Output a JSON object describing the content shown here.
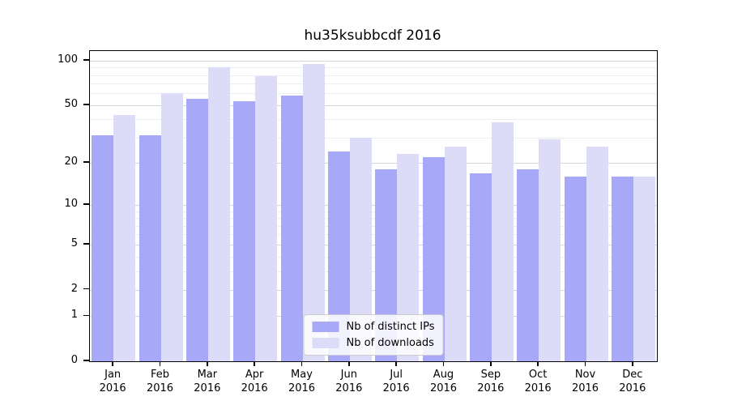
{
  "title": "hu35ksubbcdf 2016",
  "y_axis": {
    "ticks": [
      0,
      1,
      2,
      5,
      10,
      20,
      50,
      100
    ]
  },
  "grid": {
    "major": [
      1,
      2,
      5,
      10,
      20,
      50,
      100
    ],
    "minor": [
      3,
      4,
      6,
      7,
      8,
      9,
      30,
      40,
      60,
      70,
      80,
      90
    ]
  },
  "legend": {
    "items": [
      "Nb of distinct IPs",
      "Nb of downloads"
    ]
  },
  "chart_data": {
    "type": "bar",
    "title": "hu35ksubbcdf 2016",
    "categories": [
      "Jan 2016",
      "Feb 2016",
      "Mar 2016",
      "Apr 2016",
      "May 2016",
      "Jun 2016",
      "Jul 2016",
      "Aug 2016",
      "Sep 2016",
      "Oct 2016",
      "Nov 2016",
      "Dec 2016"
    ],
    "series": [
      {
        "name": "Nb of distinct IPs",
        "color": "#a8a8f8",
        "values": [
          31,
          31,
          55,
          53,
          58,
          24,
          18,
          22,
          17,
          18,
          16,
          16
        ]
      },
      {
        "name": "Nb of downloads",
        "color": "#dcdcf8",
        "values": [
          43,
          60,
          90,
          79,
          95,
          30,
          23,
          26,
          38,
          29,
          26,
          16
        ]
      }
    ],
    "yscale": "log1p",
    "yticks": [
      0,
      1,
      2,
      5,
      10,
      20,
      50,
      100
    ],
    "ylim": [
      0,
      116
    ],
    "xlabel": "",
    "ylabel": "",
    "legend_position": "lower center",
    "grid": true
  }
}
